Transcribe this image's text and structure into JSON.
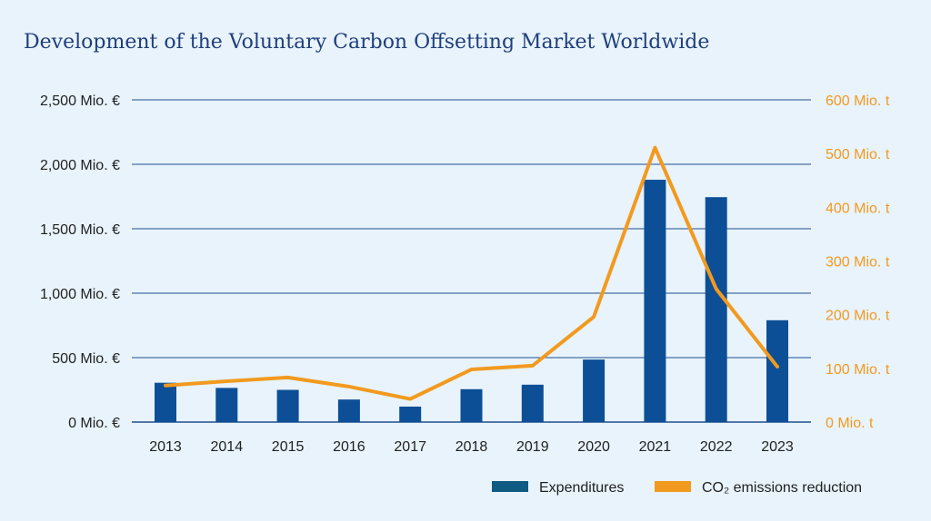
{
  "chart_data": {
    "type": "bar-line",
    "title": "Development of the Voluntary Carbon Offsetting Market Worldwide",
    "categories": [
      "2013",
      "2014",
      "2015",
      "2016",
      "2017",
      "2018",
      "2019",
      "2020",
      "2021",
      "2022",
      "2023"
    ],
    "y_left": {
      "min": 0,
      "max": 2500,
      "ticks": [
        0,
        500,
        1000,
        1500,
        2000,
        2500
      ],
      "tick_labels": [
        "0 Mio. €",
        "500 Mio. €",
        "1,000 Mio. €",
        "1,500 Mio. €",
        "2,000 Mio. €",
        "2,500 Mio. €"
      ]
    },
    "y_right": {
      "min": 0,
      "max": 600,
      "ticks": [
        0,
        100,
        200,
        300,
        400,
        500,
        600
      ],
      "tick_labels": [
        "0 Mio. t",
        "100 Mio. t",
        "200 Mio. t",
        "300 Mio. t",
        "400 Mio. t",
        "500 Mio. t",
        "600 Mio. t"
      ]
    },
    "series": [
      {
        "name": "Expenditures",
        "type": "bar",
        "axis": "left",
        "color": "#0d4f96",
        "values": [
          305,
          265,
          250,
          175,
          120,
          255,
          290,
          485,
          1880,
          1745,
          790
        ]
      },
      {
        "name": "CO₂ emissions reduction",
        "type": "line",
        "axis": "right",
        "color": "#f29a1f",
        "values": [
          68,
          76,
          83,
          66,
          43,
          98,
          105,
          196,
          511,
          248,
          103
        ]
      }
    ],
    "grid": "horizontal",
    "legend_position": "bottom-right"
  },
  "colors": {
    "background": "#e8f3fb",
    "title": "#1f3e7c",
    "grid": "#1f4f8c",
    "bar": "#0d4f96",
    "line": "#f29a1f",
    "right_axis_text": "#f29a1f",
    "legend_bar_swatch": "#0f5b82"
  }
}
